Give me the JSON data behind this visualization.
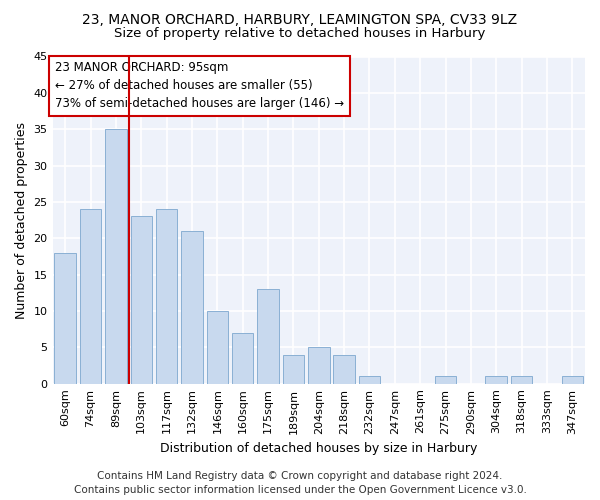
{
  "title1": "23, MANOR ORCHARD, HARBURY, LEAMINGTON SPA, CV33 9LZ",
  "title2": "Size of property relative to detached houses in Harbury",
  "xlabel": "Distribution of detached houses by size in Harbury",
  "ylabel": "Number of detached properties",
  "categories": [
    "60sqm",
    "74sqm",
    "89sqm",
    "103sqm",
    "117sqm",
    "132sqm",
    "146sqm",
    "160sqm",
    "175sqm",
    "189sqm",
    "204sqm",
    "218sqm",
    "232sqm",
    "247sqm",
    "261sqm",
    "275sqm",
    "290sqm",
    "304sqm",
    "318sqm",
    "333sqm",
    "347sqm"
  ],
  "values": [
    18,
    24,
    35,
    23,
    24,
    21,
    10,
    7,
    13,
    4,
    5,
    4,
    1,
    0,
    0,
    1,
    0,
    1,
    1,
    0,
    1
  ],
  "bar_color": "#c8d9ee",
  "bar_edgecolor": "#8ab0d4",
  "property_line_x": 2,
  "annotation_line1": "23 MANOR ORCHARD: 95sqm",
  "annotation_line2": "← 27% of detached houses are smaller (55)",
  "annotation_line3": "73% of semi-detached houses are larger (146) →",
  "vline_color": "#cc0000",
  "box_edgecolor": "#cc0000",
  "ylim": [
    0,
    45
  ],
  "yticks": [
    0,
    5,
    10,
    15,
    20,
    25,
    30,
    35,
    40,
    45
  ],
  "footer1": "Contains HM Land Registry data © Crown copyright and database right 2024.",
  "footer2": "Contains public sector information licensed under the Open Government Licence v3.0.",
  "bg_color": "#eef2fa",
  "grid_color": "#ffffff",
  "title1_fontsize": 10,
  "title2_fontsize": 9.5,
  "xlabel_fontsize": 9,
  "ylabel_fontsize": 9,
  "tick_fontsize": 8,
  "footer_fontsize": 7.5,
  "annot_fontsize": 8.5
}
